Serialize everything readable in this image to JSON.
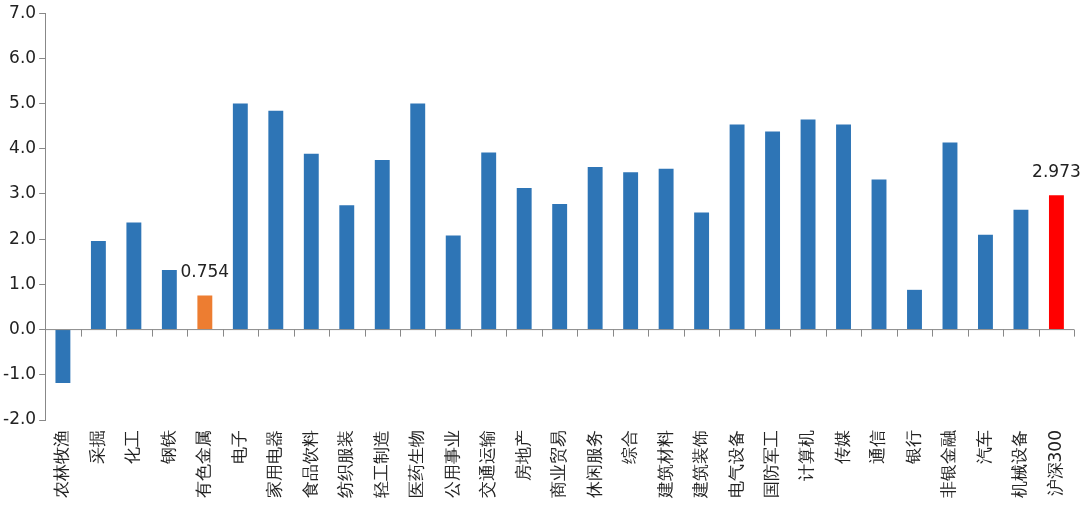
{
  "chart_data": {
    "type": "bar",
    "categories": [
      "农林牧渔",
      "采掘",
      "化工",
      "钢铁",
      "有色金属",
      "电子",
      "家用电器",
      "食品饮料",
      "纺织服装",
      "轻工制造",
      "医药生物",
      "公用事业",
      "交通运输",
      "房地产",
      "商业贸易",
      "休闲服务",
      "综合",
      "建筑材料",
      "建筑装饰",
      "电气设备",
      "国防军工",
      "计算机",
      "传媒",
      "通信",
      "银行",
      "非银金融",
      "汽车",
      "机械设备",
      "沪深300"
    ],
    "values": [
      -1.18,
      1.96,
      2.37,
      1.32,
      0.754,
      5.0,
      4.84,
      3.89,
      2.75,
      3.75,
      5.0,
      2.08,
      3.92,
      3.13,
      2.78,
      3.6,
      3.48,
      3.56,
      2.59,
      4.54,
      4.38,
      4.65,
      4.54,
      3.32,
      0.88,
      4.14,
      2.1,
      2.65,
      2.973
    ],
    "colors": [
      "#2e75b6",
      "#2e75b6",
      "#2e75b6",
      "#2e75b6",
      "#ed7d31",
      "#2e75b6",
      "#2e75b6",
      "#2e75b6",
      "#2e75b6",
      "#2e75b6",
      "#2e75b6",
      "#2e75b6",
      "#2e75b6",
      "#2e75b6",
      "#2e75b6",
      "#2e75b6",
      "#2e75b6",
      "#2e75b6",
      "#2e75b6",
      "#2e75b6",
      "#2e75b6",
      "#2e75b6",
      "#2e75b6",
      "#2e75b6",
      "#2e75b6",
      "#2e75b6",
      "#2e75b6",
      "#2e75b6",
      "#ff0000"
    ],
    "value_labels": [
      null,
      null,
      null,
      null,
      "0.754",
      null,
      null,
      null,
      null,
      null,
      null,
      null,
      null,
      null,
      null,
      null,
      null,
      null,
      null,
      null,
      null,
      null,
      null,
      null,
      null,
      null,
      null,
      null,
      "2.973"
    ],
    "ylim": [
      -2,
      7
    ],
    "yticks": [
      {
        "value": -2,
        "label": "-2.0"
      },
      {
        "value": -1,
        "label": "-1.0"
      },
      {
        "value": 0,
        "label": "0.0"
      },
      {
        "value": 1,
        "label": "1.0"
      },
      {
        "value": 2,
        "label": "2.0"
      },
      {
        "value": 3,
        "label": "3.0"
      },
      {
        "value": 4,
        "label": "4.0"
      },
      {
        "value": 5,
        "label": "5.0"
      },
      {
        "value": 6,
        "label": "6.0"
      },
      {
        "value": 7,
        "label": "7.0"
      }
    ],
    "legend": false
  }
}
